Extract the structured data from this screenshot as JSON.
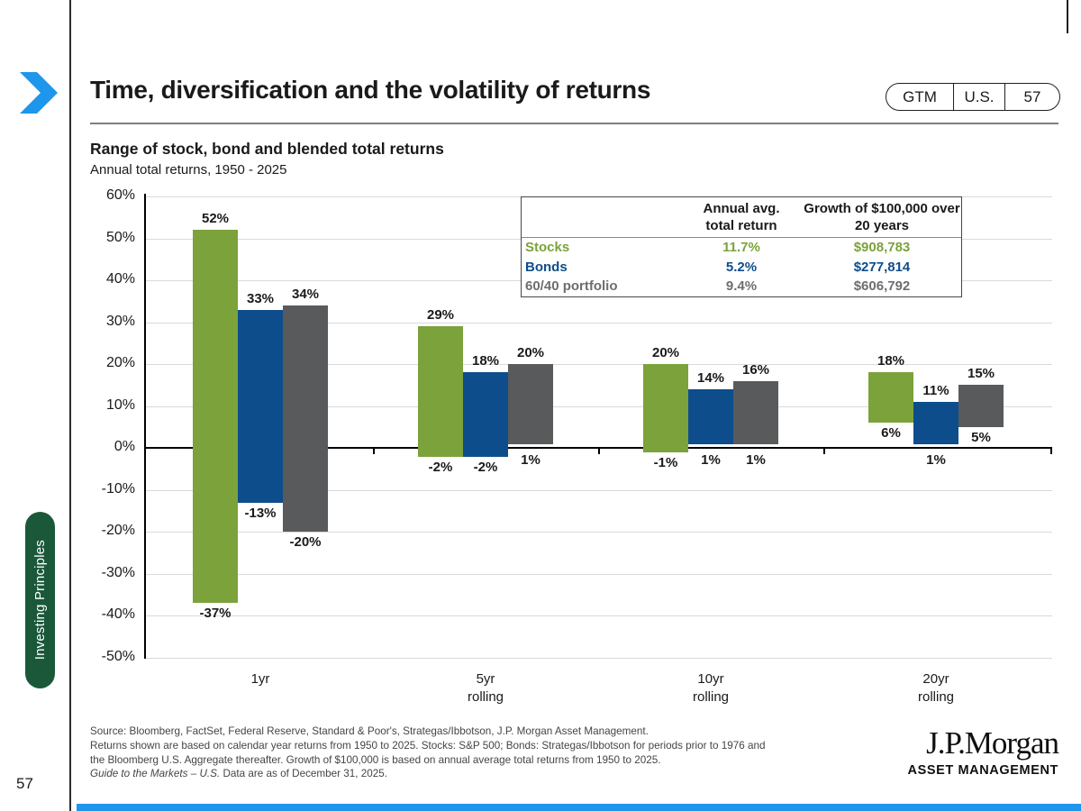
{
  "header": {
    "title": "Time, diversification and the volatility of returns",
    "gtm_label": "GTM",
    "region_label": "U.S.",
    "page_number": "57"
  },
  "chart_header": {
    "title": "Range of stock, bond and blended total returns",
    "subtitle": "Annual total returns, 1950 - 2025"
  },
  "chart_data": {
    "type": "bar",
    "subtype": "floating-range-columns",
    "title": "Range of stock, bond and blended total returns",
    "subtitle": "Annual total returns, 1950 - 2025",
    "categories": [
      "1yr",
      "5yr rolling",
      "10yr rolling",
      "20yr rolling"
    ],
    "series": [
      {
        "name": "Stocks",
        "color": "#7BA23B",
        "ranges": [
          [
            -37,
            52
          ],
          [
            -2,
            29
          ],
          [
            -1,
            20
          ],
          [
            6,
            18
          ]
        ]
      },
      {
        "name": "Bonds",
        "color": "#0E4D8C",
        "ranges": [
          [
            -13,
            33
          ],
          [
            -2,
            18
          ],
          [
            1,
            14
          ],
          [
            1,
            11
          ]
        ]
      },
      {
        "name": "60/40 portfolio",
        "color": "#595A5C",
        "ranges": [
          [
            -20,
            34
          ],
          [
            1,
            20
          ],
          [
            1,
            16
          ],
          [
            5,
            15
          ]
        ]
      }
    ],
    "ylim": [
      -50,
      60
    ],
    "ytick_step": 10,
    "ytick_suffix": "%",
    "grid": true,
    "legend_position": "table-top-right"
  },
  "stats_table": {
    "header_col2": [
      "Annual avg.",
      "total return"
    ],
    "header_col3": [
      "Growth of $100,000 over",
      "20 years"
    ],
    "rows": [
      {
        "label": "Stocks",
        "avg": "11.7%",
        "growth": "$908,783",
        "color": "#7BA23B"
      },
      {
        "label": "Bonds",
        "avg": "5.2%",
        "growth": "$277,814",
        "color": "#0E4D8C"
      },
      {
        "label": "60/40 portfolio",
        "avg": "9.4%",
        "growth": "$606,792",
        "color": "#6D6E71"
      }
    ]
  },
  "sidebar": {
    "tab_label": "Investing Principles",
    "page_number": "57"
  },
  "footer": {
    "source_lines": [
      "Source: Bloomberg, FactSet, Federal Reserve, Standard & Poor's, Strategas/Ibbotson, J.P. Morgan Asset Management.",
      "Returns shown are based on calendar year returns from 1950 to 2025. Stocks: S&P 500; Bonds: Strategas/Ibbotson for periods prior to 1976 and",
      "the Bloomberg U.S. Aggregate thereafter. Growth of $100,000 is based on annual average total returns from 1950 to 2025."
    ],
    "gtm_italic": "Guide to the Markets – U.S.",
    "gtm_rest": " Data are as of December 31, 2025.",
    "logo_name": "J.P.Morgan",
    "logo_sub": "ASSET MANAGEMENT"
  },
  "colors": {
    "accent_blue": "#1E96EB",
    "stocks_green": "#7BA23B",
    "bonds_blue": "#0E4D8C",
    "blend_gray": "#595A5C",
    "blend_gray_text": "#6D6E71",
    "tab_green": "#1A5839",
    "grid_gray": "#D9D9D9",
    "text_dark": "#1A1A1A"
  }
}
